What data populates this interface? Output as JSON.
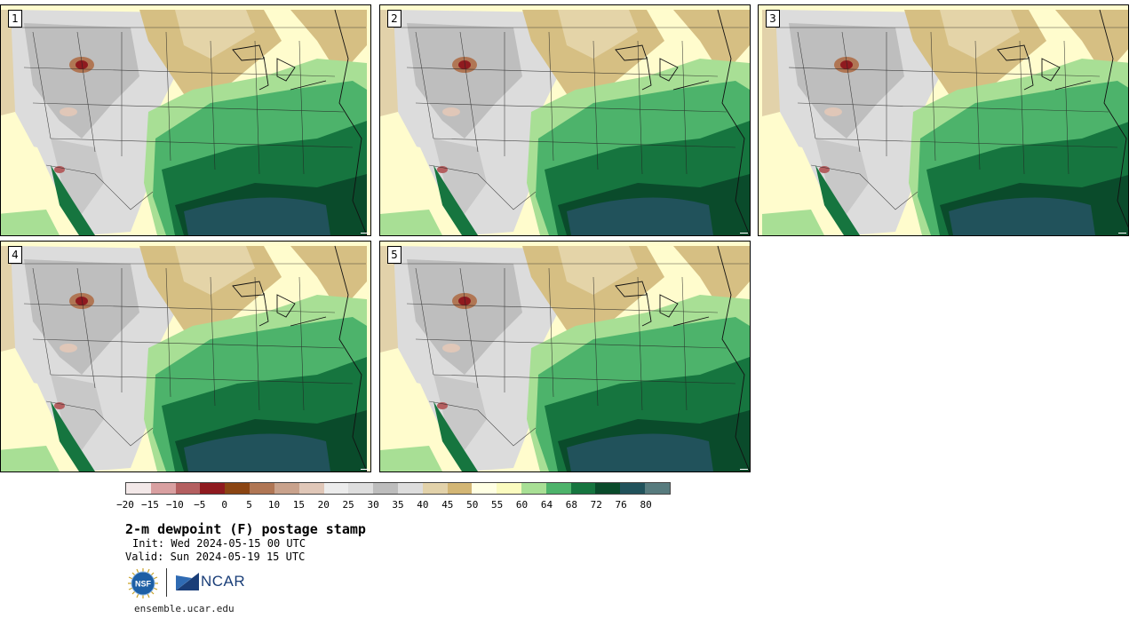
{
  "panels": [
    {
      "id": "p1",
      "label": "1"
    },
    {
      "id": "p2",
      "label": "2"
    },
    {
      "id": "p3",
      "label": "3"
    },
    {
      "id": "p4",
      "label": "4"
    },
    {
      "id": "p5",
      "label": "5"
    }
  ],
  "colorbar": {
    "colors": [
      "#f3e8e8",
      "#d9a0a1",
      "#b45f60",
      "#8f1a1f",
      "#8b4513",
      "#b07654",
      "#c9a28c",
      "#e0c7b8",
      "#ececec",
      "#dedede",
      "#bdbdbd",
      "#dddddd",
      "#e2d2aa",
      "#d3b675",
      "#ffffe3",
      "#fbfbbf",
      "#a8df95",
      "#4db36b",
      "#16753f",
      "#0a4b2b",
      "#21525b",
      "#577b7e"
    ],
    "ticks": [
      "−20",
      "−15",
      "−10",
      "−5",
      "0",
      "5",
      "10",
      "15",
      "20",
      "25",
      "30",
      "35",
      "40",
      "45",
      "50",
      "55",
      "60",
      "64",
      "68",
      "72",
      "76",
      "80"
    ]
  },
  "title": "2-m dewpoint (F) postage stamp",
  "init": "Init: Wed 2024-05-15 00 UTC",
  "valid": "Valid: Sun 2024-05-19 15 UTC",
  "logos": {
    "nsf": "NSF",
    "ncar": "NCAR"
  },
  "site": "ensemble.ucar.edu"
}
